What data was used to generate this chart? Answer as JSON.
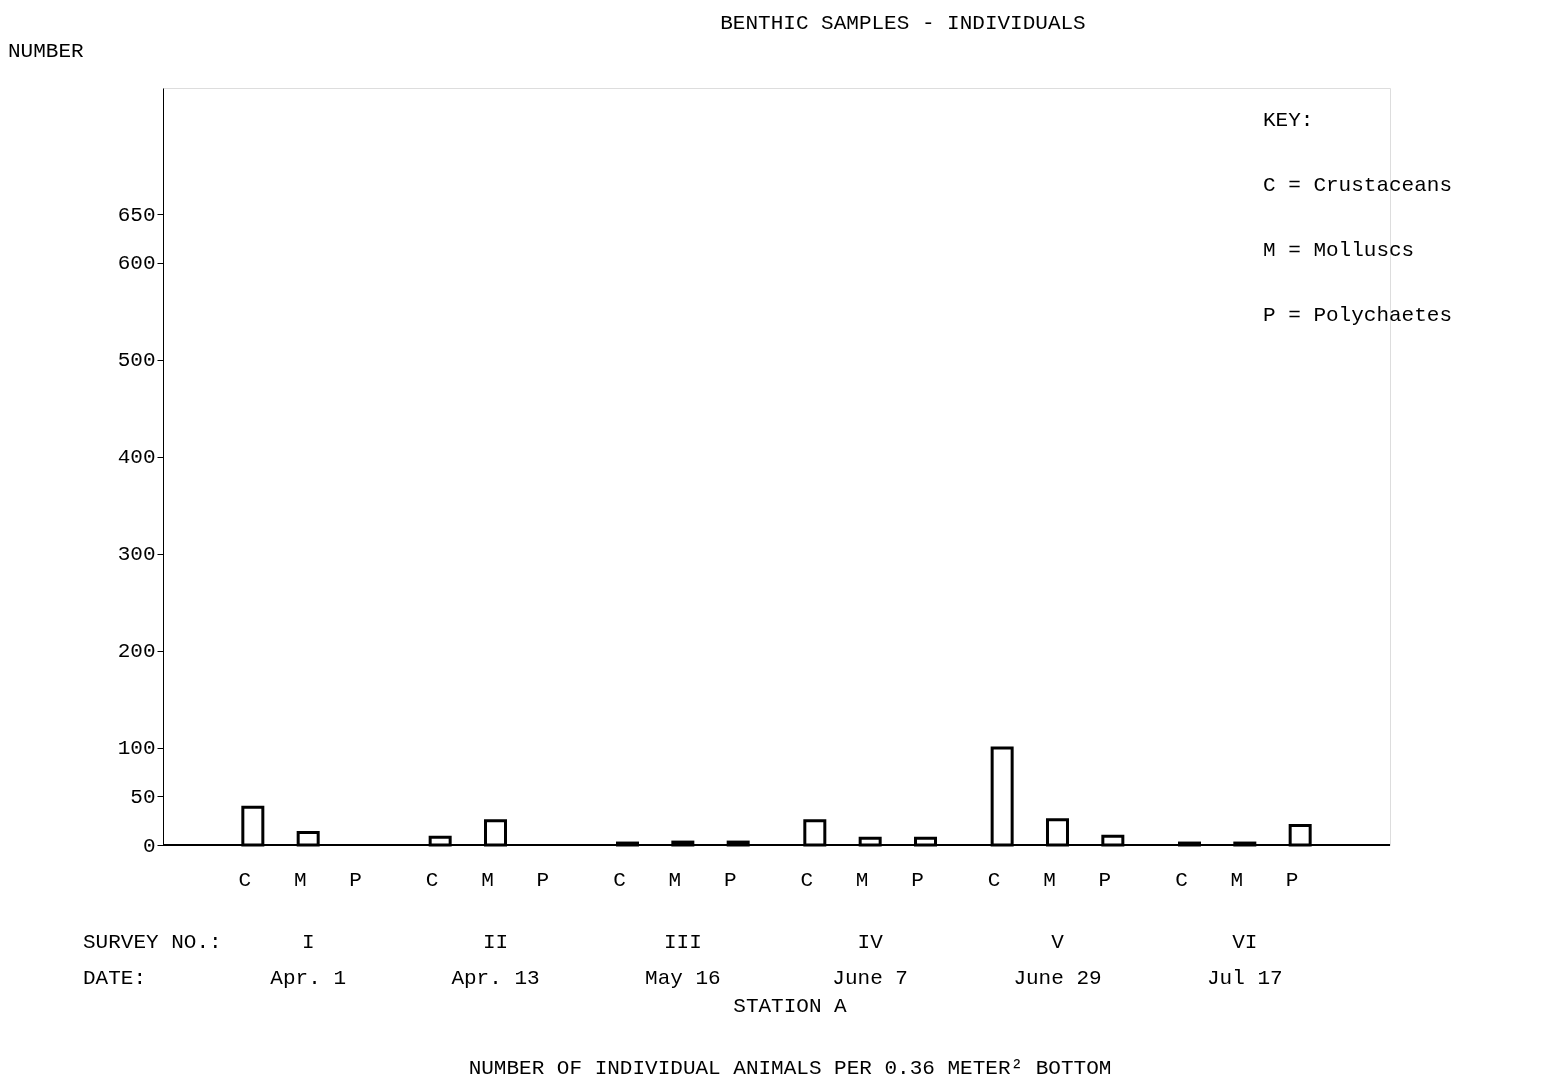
{
  "chart_data": {
    "type": "bar",
    "title": "BENTHIC SAMPLES - INDIVIDUALS",
    "ylabel": "NUMBER",
    "xlabel": "STATION A",
    "legend_title": "KEY:",
    "categories": [
      "I",
      "II",
      "III",
      "IV",
      "V",
      "VI"
    ],
    "series": [
      {
        "name": "C",
        "color": "#ffffff",
        "values": [
          39,
          8,
          2,
          25,
          100,
          2
        ]
      },
      {
        "name": "M",
        "color": "#ffffff",
        "values": [
          13,
          25,
          3,
          7,
          26,
          2
        ]
      },
      {
        "name": "P",
        "color": "#ffffff",
        "values": [
          null,
          null,
          3,
          7,
          9,
          20
        ]
      }
    ],
    "ylim": [
      0,
      780
    ],
    "yticks": [
      0,
      50,
      100,
      200,
      300,
      400,
      500,
      600,
      650
    ],
    "grid": false,
    "annotations": [
      "SURVEY NO.:",
      "DATE:",
      "C = Crustaceans",
      "M = Molluscs",
      "P = Polychaetes",
      "NUMBER OF INDIVIDUAL ANIMALS PER 0.36 METER² BOTTOM",
      "Apr. 1",
      "Apr. 13",
      "May 16",
      "June 7",
      "June 29",
      "Jul 17"
    ]
  }
}
